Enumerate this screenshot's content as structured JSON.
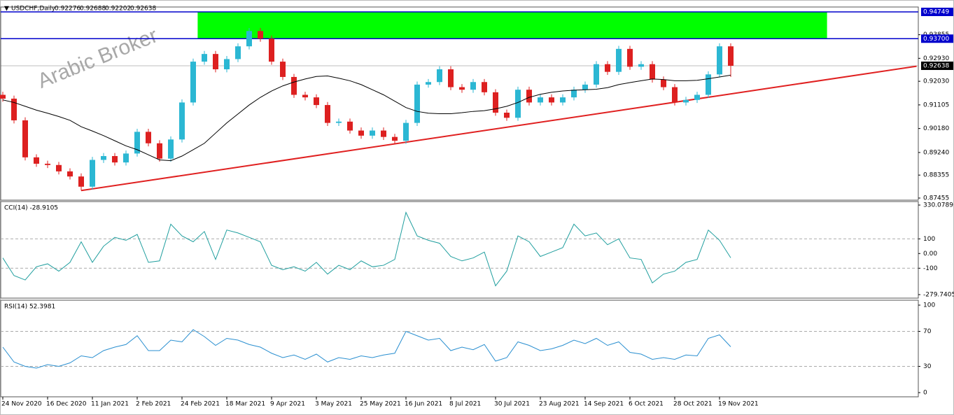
{
  "chart_data": {
    "type": "candlestick",
    "symbol": "USDCHF,Daily",
    "header_values": [
      0.92276,
      0.92688,
      0.92202,
      0.92638
    ],
    "watermark": "Arabic Broker",
    "bull_color": "#2bb7d3",
    "bear_color": "#dd2020",
    "open": [
      0.915,
      0.9135,
      0.905,
      0.8905,
      0.888,
      0.8875,
      0.885,
      0.883,
      0.879,
      0.8895,
      0.891,
      0.8885,
      0.892,
      0.9005,
      0.896,
      0.89,
      0.8975,
      0.912,
      0.928,
      0.931,
      0.925,
      0.929,
      0.934,
      0.94,
      0.937,
      0.928,
      0.922,
      0.915,
      0.914,
      0.911,
      0.904,
      0.9045,
      0.901,
      0.899,
      0.901,
      0.8985,
      0.897,
      0.904,
      0.919,
      0.92,
      0.925,
      0.918,
      0.917,
      0.92,
      0.916,
      0.908,
      0.906,
      0.917,
      0.912,
      0.914,
      0.912,
      0.914,
      0.917,
      0.919,
      0.927,
      0.924,
      0.933,
      0.926,
      0.927,
      0.921,
      0.918,
      0.912,
      0.913,
      0.915,
      0.923,
      0.934
    ],
    "high": [
      0.9162,
      0.9147,
      0.9062,
      0.8917,
      0.8892,
      0.8887,
      0.8862,
      0.8842,
      0.8907,
      0.8922,
      0.8922,
      0.8932,
      0.9017,
      0.9017,
      0.8972,
      0.8987,
      0.9132,
      0.9292,
      0.9322,
      0.9322,
      0.9302,
      0.9352,
      0.9412,
      0.9412,
      0.9382,
      0.9292,
      0.9232,
      0.9162,
      0.9152,
      0.9122,
      0.9057,
      0.9057,
      0.9022,
      0.9022,
      0.9022,
      0.8997,
      0.9052,
      0.9202,
      0.9212,
      0.9262,
      0.9262,
      0.9192,
      0.9212,
      0.9212,
      0.9172,
      0.9092,
      0.9182,
      0.9182,
      0.9152,
      0.9152,
      0.9152,
      0.9182,
      0.9202,
      0.9282,
      0.9282,
      0.9342,
      0.9342,
      0.9282,
      0.9282,
      0.9222,
      0.9192,
      0.9142,
      0.9162,
      0.9242,
      0.9352,
      0.9352
    ],
    "low": [
      0.9123,
      0.9038,
      0.8893,
      0.8868,
      0.8863,
      0.8838,
      0.8818,
      0.8775,
      0.8778,
      0.8883,
      0.8873,
      0.8873,
      0.8908,
      0.8948,
      0.8888,
      0.8888,
      0.8963,
      0.9108,
      0.9268,
      0.9238,
      0.9238,
      0.9278,
      0.9328,
      0.9358,
      0.9268,
      0.9208,
      0.9138,
      0.9128,
      0.9098,
      0.9028,
      0.9028,
      0.8998,
      0.8978,
      0.8978,
      0.8973,
      0.8958,
      0.8958,
      0.9028,
      0.9178,
      0.9188,
      0.9168,
      0.9158,
      0.9158,
      0.9148,
      0.9068,
      0.9048,
      0.9048,
      0.9108,
      0.9108,
      0.9108,
      0.9108,
      0.9128,
      0.9158,
      0.9178,
      0.9228,
      0.9228,
      0.9248,
      0.9248,
      0.9198,
      0.9168,
      0.9108,
      0.9108,
      0.9118,
      0.9138,
      0.9218,
      0.922
    ],
    "close": [
      0.9135,
      0.905,
      0.8905,
      0.888,
      0.8875,
      0.885,
      0.883,
      0.879,
      0.8895,
      0.891,
      0.8885,
      0.892,
      0.9005,
      0.896,
      0.89,
      0.8975,
      0.912,
      0.928,
      0.931,
      0.925,
      0.929,
      0.934,
      0.94,
      0.937,
      0.928,
      0.922,
      0.915,
      0.914,
      0.911,
      0.904,
      0.9045,
      0.901,
      0.899,
      0.901,
      0.8985,
      0.897,
      0.904,
      0.919,
      0.92,
      0.925,
      0.918,
      0.917,
      0.92,
      0.916,
      0.908,
      0.906,
      0.917,
      0.912,
      0.914,
      0.912,
      0.914,
      0.917,
      0.919,
      0.927,
      0.924,
      0.933,
      0.926,
      0.927,
      0.921,
      0.918,
      0.912,
      0.913,
      0.915,
      0.923,
      0.934,
      0.92638
    ],
    "ma": [
      0.913,
      0.912,
      0.9105,
      0.909,
      0.9078,
      0.9065,
      0.905,
      0.9025,
      0.9008,
      0.899,
      0.897,
      0.895,
      0.8935,
      0.8915,
      0.8895,
      0.8892,
      0.891,
      0.8935,
      0.896,
      0.9,
      0.904,
      0.9075,
      0.911,
      0.914,
      0.9165,
      0.9185,
      0.92,
      0.9212,
      0.9222,
      0.9224,
      0.9215,
      0.9205,
      0.919,
      0.917,
      0.915,
      0.9125,
      0.91,
      0.9085,
      0.9078,
      0.9076,
      0.9076,
      0.908,
      0.9085,
      0.9088,
      0.9095,
      0.9105,
      0.912,
      0.914,
      0.9152,
      0.916,
      0.9165,
      0.9168,
      0.917,
      0.9172,
      0.9178,
      0.919,
      0.9198,
      0.9205,
      0.9212,
      0.921,
      0.9205,
      0.9205,
      0.9207,
      0.9213,
      0.922,
      0.9227
    ],
    "ylim": [
      0.87455,
      0.94749
    ],
    "yticks": [
      0.93855,
      {
        "value": 0.9293,
        "label": "0.92930"
      },
      {
        "value": 0.9203,
        "label": "0.92030"
      },
      0.91105,
      {
        "value": 0.9018,
        "label": "0.90180"
      },
      {
        "value": 0.8924,
        "label": "0.89240"
      },
      0.88355,
      0.87455
    ],
    "levels": [
      0.94749,
      {
        "value": 0.937,
        "label": "0.93700"
      }
    ],
    "level_color": "#0000cc",
    "last_price": 0.92638,
    "zone": {
      "x": [
        17.4,
        73.6
      ],
      "y": [
        0.937,
        0.94749
      ],
      "color": "#00ff00"
    },
    "trendline": {
      "x": [
        7,
        81.6
      ],
      "y": [
        0.8775,
        0.9262
      ],
      "color": "#e02020"
    },
    "xticks": [
      {
        "value": 0,
        "label": "24 Nov 2020"
      },
      {
        "value": 4,
        "label": "16 Dec 2020"
      },
      {
        "value": 8,
        "label": "11 Jan 2021"
      },
      {
        "value": 12,
        "label": "2 Feb 2021"
      },
      {
        "value": 16,
        "label": "24 Feb 2021"
      },
      {
        "value": 20,
        "label": "18 Mar 2021"
      },
      {
        "value": 24,
        "label": "9 Apr 2021"
      },
      {
        "value": 28,
        "label": "3 May 2021"
      },
      {
        "value": 32,
        "label": "25 May 2021"
      },
      {
        "value": 36,
        "label": "16 Jun 2021"
      },
      {
        "value": 40,
        "label": "8 Jul 2021"
      },
      {
        "value": 44,
        "label": "30 Jul 2021"
      },
      {
        "value": 48,
        "label": "23 Aug 2021"
      },
      {
        "value": 52,
        "label": "14 Sep 2021"
      },
      {
        "value": 56,
        "label": "6 Oct 2021"
      },
      {
        "value": 60,
        "label": "28 Oct 2021"
      },
      {
        "value": 64,
        "label": "19 Nov 2021"
      }
    ],
    "indicators": [
      {
        "name": "CCI(14) -28.9105",
        "color": "#1f9e9e",
        "values": [
          -30,
          -150,
          -180,
          -90,
          -70,
          -120,
          -60,
          80,
          -60,
          50,
          110,
          90,
          130,
          -60,
          -50,
          200,
          120,
          80,
          150,
          -40,
          160,
          140,
          110,
          80,
          -80,
          -110,
          -90,
          -120,
          -60,
          -140,
          -80,
          -110,
          -50,
          -90,
          -80,
          -40,
          280,
          120,
          90,
          70,
          -20,
          -50,
          -30,
          10,
          -220,
          -120,
          120,
          80,
          -20,
          10,
          40,
          200,
          120,
          140,
          60,
          100,
          -30,
          -40,
          -200,
          -140,
          -120,
          -60,
          -40,
          160,
          90,
          -28.9105
        ],
        "ylim": [
          -279.7405,
          330.0789
        ],
        "yticks": [
          330.0789,
          100,
          {
            "value": 0,
            "label": "0.00"
          },
          -100,
          -279.7405
        ],
        "levels": [
          100,
          -100
        ]
      },
      {
        "name": "RSI(14) 52.3981",
        "color": "#2a8fd0",
        "values": [
          52,
          35,
          30,
          28,
          32,
          30,
          34,
          42,
          40,
          48,
          52,
          55,
          65,
          48,
          48,
          60,
          58,
          72,
          64,
          54,
          62,
          60,
          55,
          52,
          45,
          40,
          43,
          38,
          44,
          35,
          40,
          38,
          42,
          40,
          43,
          45,
          70,
          65,
          60,
          62,
          48,
          52,
          49,
          55,
          36,
          40,
          58,
          54,
          48,
          50,
          54,
          60,
          56,
          62,
          54,
          58,
          46,
          44,
          38,
          40,
          38,
          43,
          42,
          62,
          66,
          52.3981
        ],
        "ylim": [
          0,
          100
        ],
        "yticks": [
          100,
          70,
          30,
          0
        ],
        "levels": [
          70,
          30
        ]
      }
    ]
  }
}
